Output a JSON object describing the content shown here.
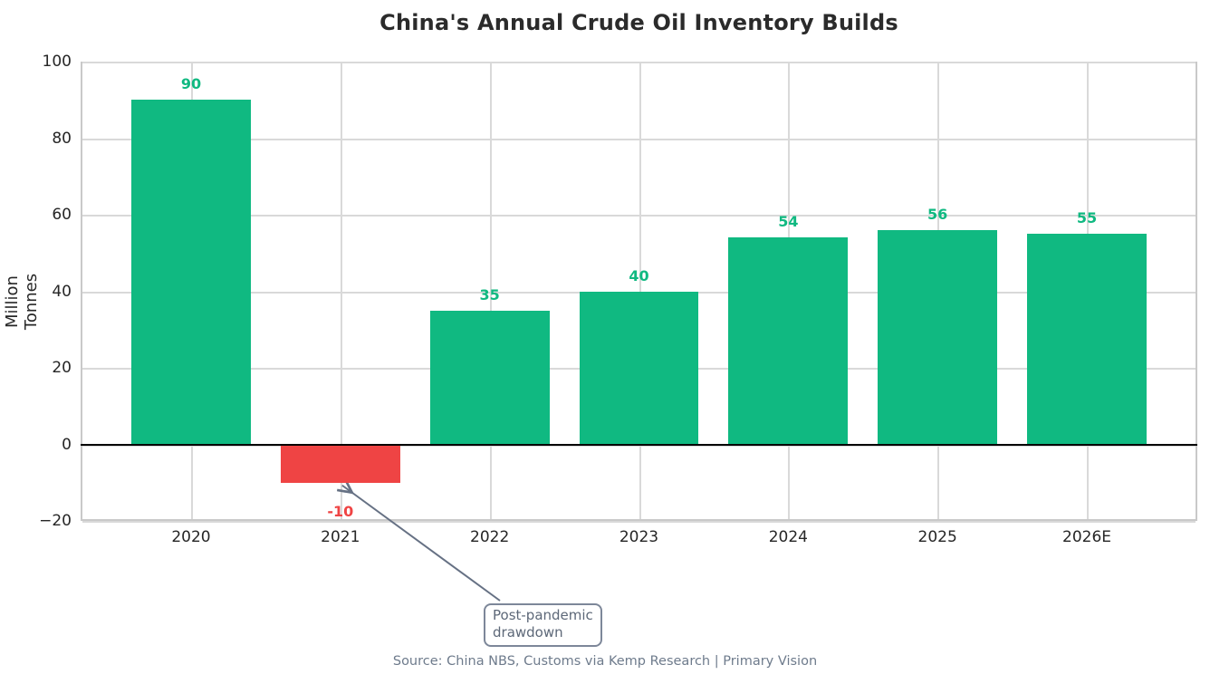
{
  "figure": {
    "source": "Source: China NBS, Customs via Kemp Research | Primary Vision"
  },
  "chart_data": {
    "type": "bar",
    "title": "China's Annual Crude Oil Inventory Builds",
    "xlabel": "",
    "ylabel": "Million Tonnes",
    "categories": [
      "2020",
      "2021",
      "2022",
      "2023",
      "2024",
      "2025",
      "2026E"
    ],
    "values": [
      90,
      -10,
      35,
      40,
      54,
      56,
      55
    ],
    "bar_labels": [
      "90",
      "-10",
      "35",
      "40",
      "54",
      "56",
      "55"
    ],
    "bar_colors": [
      "#10b981",
      "#ef4444",
      "#10b981",
      "#10b981",
      "#10b981",
      "#10b981",
      "#10b981"
    ],
    "ylim": [
      -20,
      100
    ],
    "yticks": [
      -20,
      0,
      20,
      40,
      60,
      80,
      100
    ],
    "ytick_labels": [
      "−20",
      "0",
      "20",
      "40",
      "60",
      "80",
      "100"
    ],
    "grid": true,
    "legend": null,
    "zero_line": true,
    "annotation": {
      "text_lines": [
        "Post-pandemic",
        "drawdown"
      ],
      "target_category": "2021",
      "target_value": -10
    }
  },
  "colors": {
    "positive_bar": "#10b981",
    "negative_bar": "#ef4444",
    "grid": "#d9d9d9",
    "spine": "#c9c9c9",
    "zero_line": "#000000",
    "annotation_slate": "#667184",
    "text": "#262626"
  }
}
